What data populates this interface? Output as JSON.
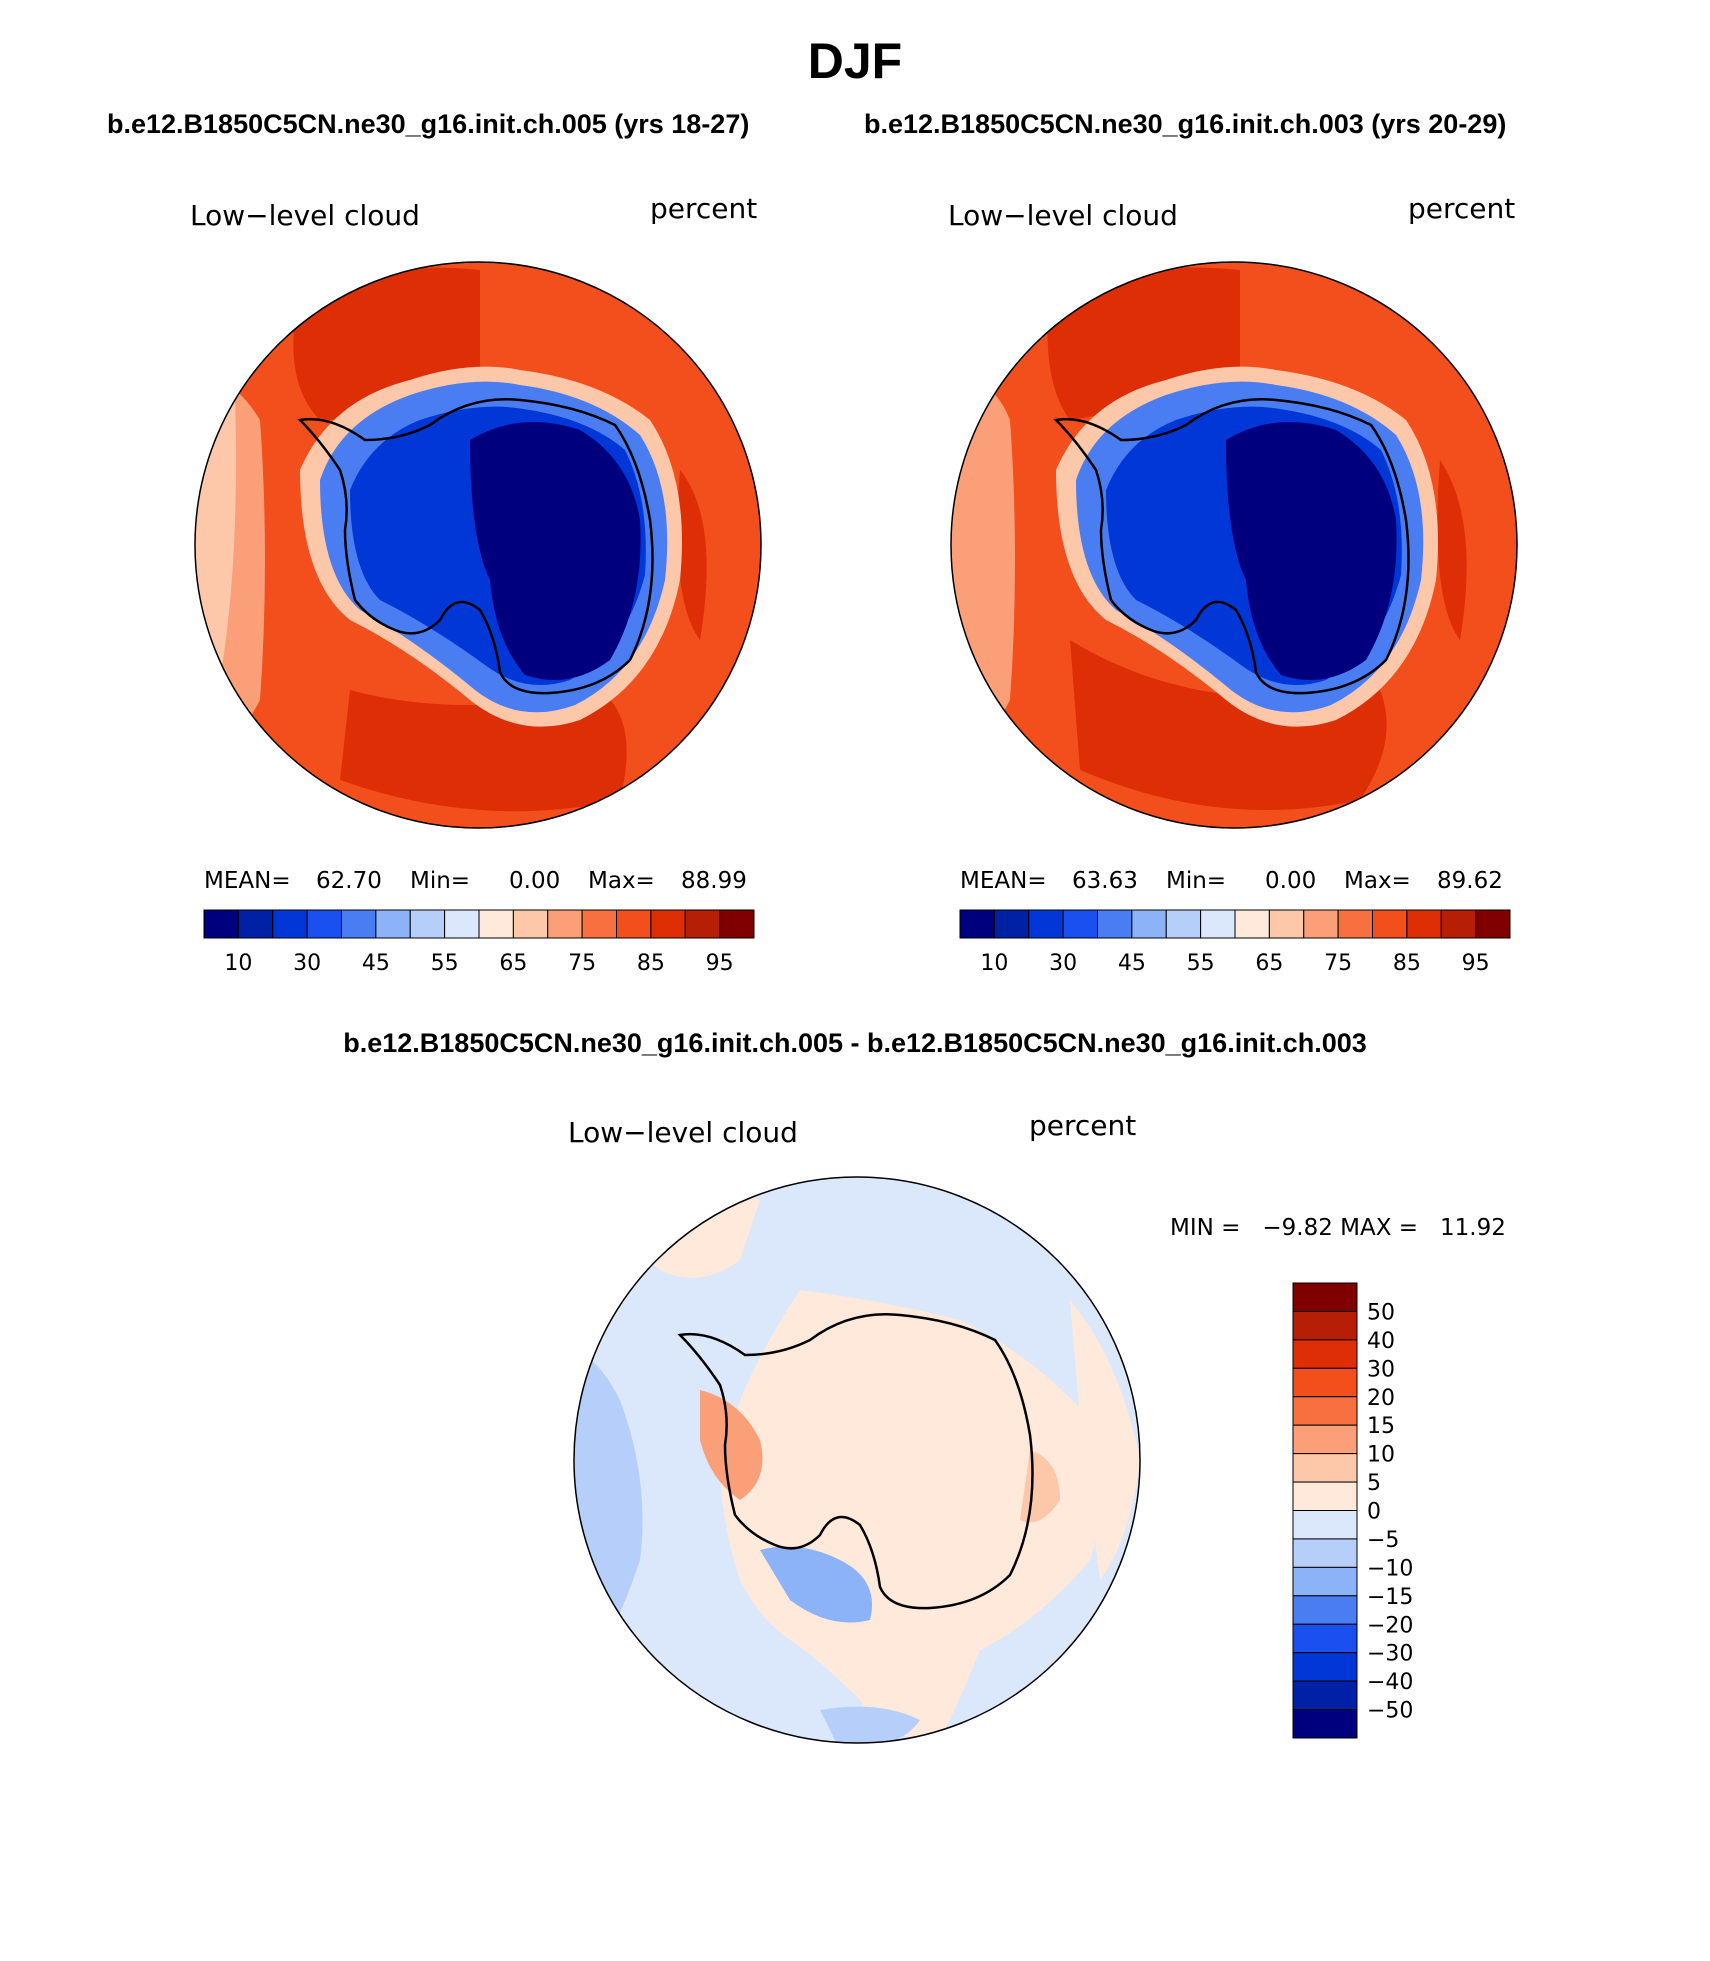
{
  "page": {
    "season": "DJF",
    "case1_title": "b.e12.B1850C5CN.ne30_g16.init.ch.005 (yrs 18-27)",
    "case2_title": "b.e12.B1850C5CN.ne30_g16.init.ch.003 (yrs 20-29)",
    "diff_title": "b.e12.B1850C5CN.ne30_g16.init.ch.005 - b.e12.B1850C5CN.ne30_g16.init.ch.003"
  },
  "panels": [
    {
      "variable": "Low−level cloud",
      "units": "percent",
      "stats_text": {
        "mean_label": "MEAN=",
        "mean": "62.70",
        "min_label": "Min=",
        "min": "0.00",
        "max_label": "Max=",
        "max": "88.99"
      },
      "region_values": {
        "antarctic_interior": 5,
        "ice_sheet_edge": 40,
        "coastal_ring": 60,
        "southern_ocean": 85,
        "mid_latitudes": 80
      }
    },
    {
      "variable": "Low−level cloud",
      "units": "percent",
      "stats_text": {
        "mean_label": "MEAN=",
        "mean": "63.63",
        "min_label": "Min=",
        "min": "0.00",
        "max_label": "Max=",
        "max": "89.62"
      },
      "region_values": {
        "antarctic_interior": 5,
        "ice_sheet_edge": 40,
        "coastal_ring": 60,
        "southern_ocean": 85,
        "mid_latitudes": 82
      }
    }
  ],
  "diff_panel": {
    "variable": "Low−level cloud",
    "units": "percent",
    "minmax_text": "MIN =   −9.82 MAX =   11.92",
    "region_values": {
      "antarctica": 2.5,
      "antarctic_peninsula": 7.5,
      "southern_ocean": -2.5,
      "south_pacific_sector": -7.5,
      "indian_ocean_sector": 2.5
    }
  },
  "abs_colorbar": {
    "tick_labels": [
      "10",
      "30",
      "45",
      "55",
      "65",
      "75",
      "85",
      "95"
    ],
    "colors": [
      "#00007f",
      "#0021a6",
      "#0037d6",
      "#1a4ff0",
      "#4a7df2",
      "#8cb2f7",
      "#b6cffa",
      "#dbe8fb",
      "#fee9da",
      "#fdc7aa",
      "#fb9f79",
      "#f87040",
      "#f24f1d",
      "#dd2e05",
      "#b61e05",
      "#800000"
    ]
  },
  "diff_colorbar": {
    "tick_labels": [
      "50",
      "40",
      "30",
      "20",
      "15",
      "10",
      "5",
      "0",
      "−5",
      "−10",
      "−15",
      "−20",
      "−30",
      "−40",
      "−50"
    ],
    "colors_top_to_bottom": [
      "#800000",
      "#b61e05",
      "#dd2e05",
      "#f24f1d",
      "#f87040",
      "#fb9f79",
      "#fdc7aa",
      "#fee9da",
      "#dbe8fb",
      "#b6cffa",
      "#8cb2f7",
      "#4a7df2",
      "#1a4ff0",
      "#0037d6",
      "#0021a6",
      "#00007f"
    ]
  },
  "map": {
    "projection": "south-polar-stereographic",
    "coastline_color": "#000000",
    "ocean_color_case": "#f24f1d",
    "interior_color_case": "#00007f",
    "diff_background": "#dbe8fb",
    "diff_positive": "#fee9da"
  }
}
